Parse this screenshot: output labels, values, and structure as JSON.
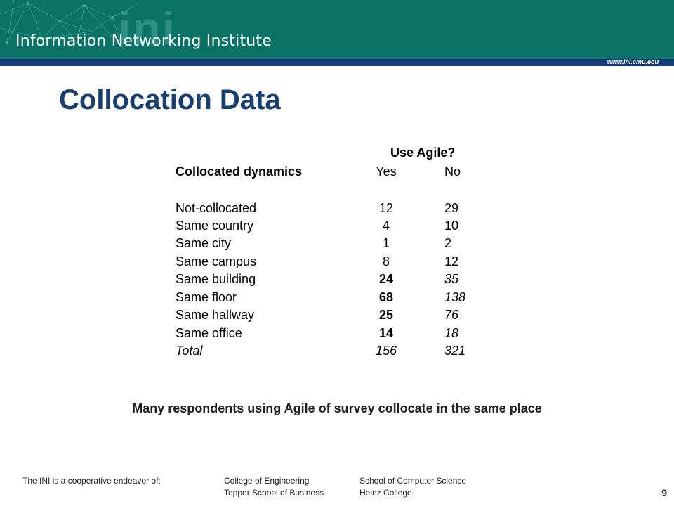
{
  "header": {
    "logo_text": "ini",
    "institute_name": "Information Networking Institute",
    "url": "www.ini.cmu.edu",
    "accent_colors": {
      "banner": "#0b7266",
      "strip": "#143c78"
    }
  },
  "slide": {
    "title": "Collocation Data",
    "note": "Many respondents using Agile of survey collocate in the same place"
  },
  "table": {
    "group_header": "Use Agile?",
    "label_header": "Collocated dynamics",
    "yes_header": "Yes",
    "no_header": "No",
    "rows": [
      {
        "label": "Not-collocated",
        "yes": "12",
        "no": "29"
      },
      {
        "label": "Same country",
        "yes": "4",
        "no": "10"
      },
      {
        "label": "Same city",
        "yes": "1",
        "no": "2"
      },
      {
        "label": "Same campus",
        "yes": "8",
        "no": "12"
      },
      {
        "label": "Same building",
        "yes": "24",
        "no": "35"
      },
      {
        "label": "Same floor",
        "yes": "68",
        "no": "138"
      },
      {
        "label": "Same hallway",
        "yes": "25",
        "no": "76"
      },
      {
        "label": "Same office",
        "yes": "14",
        "no": "18"
      },
      {
        "label": "Total",
        "yes": "156",
        "no": "321"
      }
    ]
  },
  "footer": {
    "intro": "The INI is a cooperative endeavor of:",
    "col1": [
      "College of Engineering",
      "Tepper School of Business"
    ],
    "col2": [
      "School of Computer Science",
      "Heinz College"
    ],
    "page_number": "9"
  }
}
